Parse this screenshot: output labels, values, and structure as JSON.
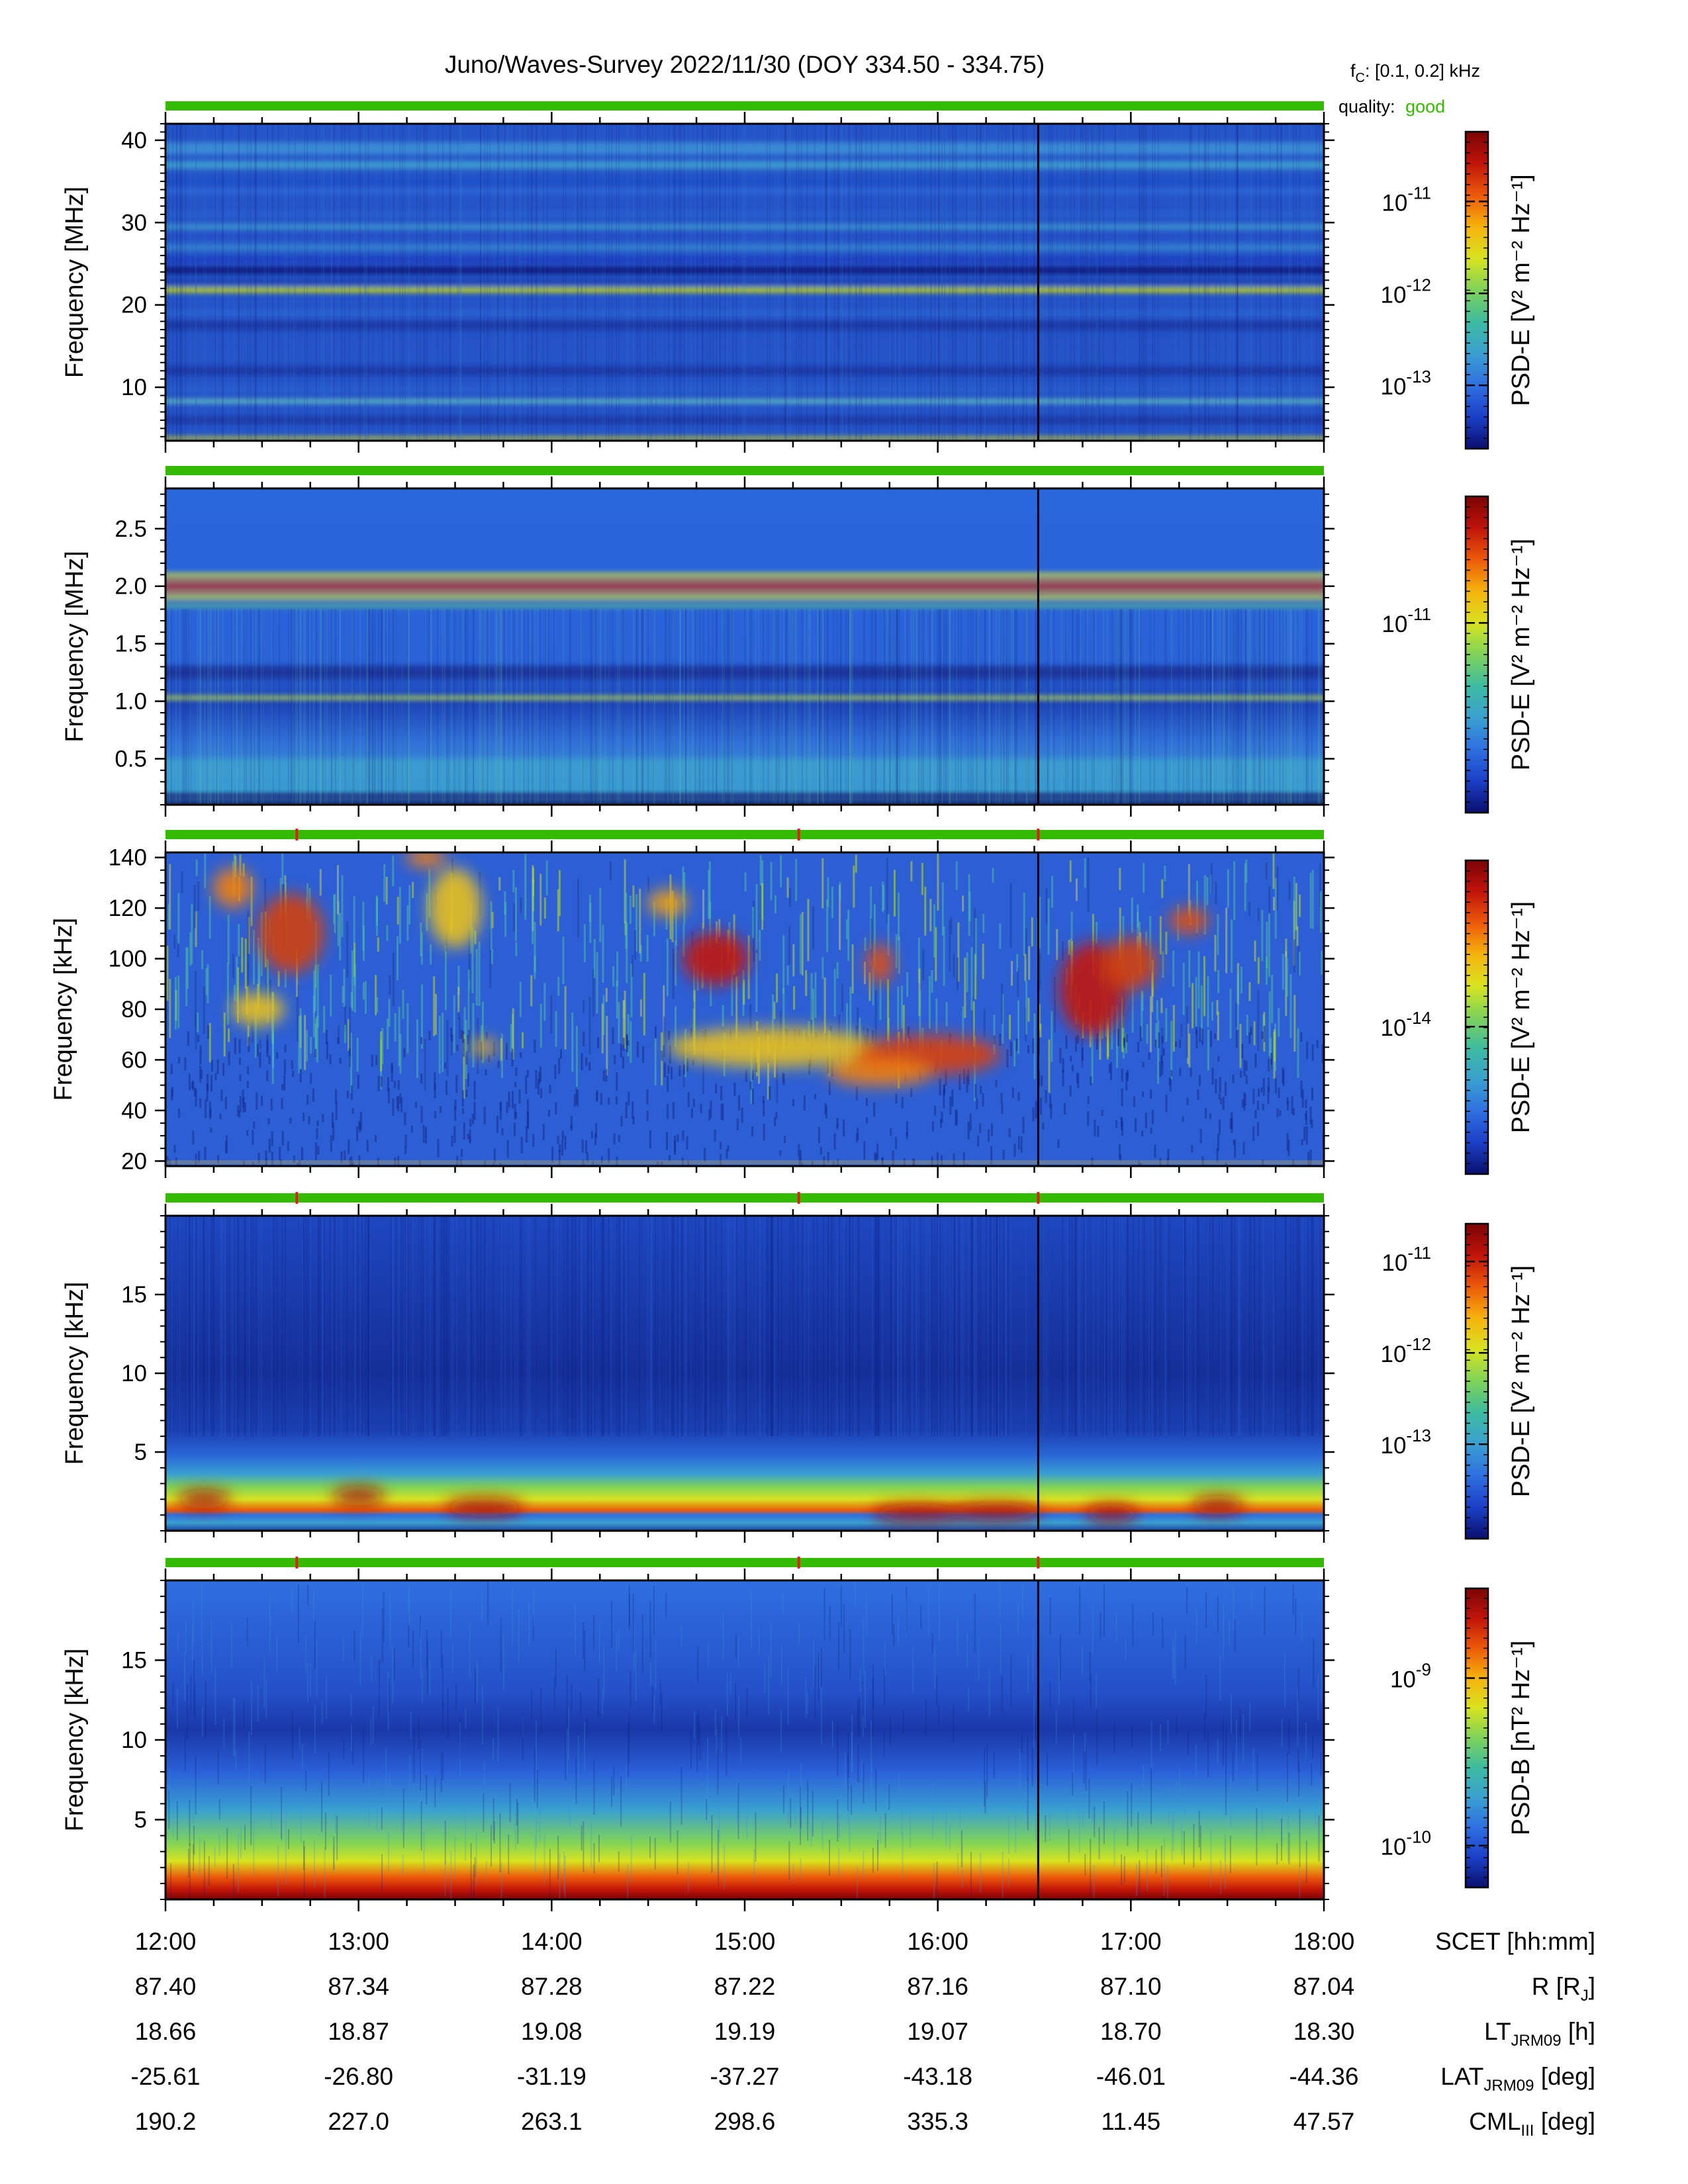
{
  "title": "Juno/Waves-Survey  2022/11/30 (DOY 334.50 - 334.75)",
  "fc": {
    "label": "f",
    "sub": "C",
    "value": ": [0.1, 0.2] kHz"
  },
  "quality": {
    "label": "quality:",
    "value": "good",
    "color": "#33bb00"
  },
  "colors": {
    "quality_bar": "#33bb00",
    "marker": "#e02020"
  },
  "chart_data": [
    {
      "type": "heatmap",
      "ylabel": "Frequency [MHz]",
      "ylim": [
        3.5,
        42
      ],
      "yticks": [
        {
          "v": 10,
          "t": "10"
        },
        {
          "v": 20,
          "t": "20"
        },
        {
          "v": 30,
          "t": "30"
        },
        {
          "v": 40,
          "t": "40"
        }
      ],
      "yminor": 1,
      "cbar": {
        "label": "PSD-E [V² m⁻² Hz⁻¹]",
        "ticks": [
          {
            "f": 0.22,
            "b": "10",
            "e": "-11"
          },
          {
            "f": 0.51,
            "b": "10",
            "e": "-12"
          },
          {
            "f": 0.8,
            "b": "10",
            "e": "-13"
          }
        ]
      },
      "markers": [],
      "bands": [
        {
          "y": 39,
          "w": 1.5,
          "c": "#3a8ad6"
        },
        {
          "y": 37,
          "w": 1,
          "c": "#3d9ad0"
        },
        {
          "y": 35,
          "w": 0.8,
          "c": "#1f50c8"
        },
        {
          "y": 33.8,
          "w": 0.6,
          "c": "#2d68d8"
        },
        {
          "y": 31,
          "w": 0.5,
          "c": "#2a62d0"
        },
        {
          "y": 29.5,
          "w": 0.6,
          "c": "#3d9ad0"
        },
        {
          "y": 28.3,
          "w": 0.4,
          "c": "#2050c8"
        },
        {
          "y": 27,
          "w": 0.8,
          "c": "#3480d0"
        },
        {
          "y": 25.5,
          "w": 0.7,
          "c": "#1a3ec0"
        },
        {
          "y": 24.2,
          "w": 0.9,
          "c": "#101e80"
        },
        {
          "y": 22.8,
          "w": 0.6,
          "c": "#1a3fb0"
        },
        {
          "y": 21.8,
          "w": 0.55,
          "c": "#d6e400"
        },
        {
          "y": 19,
          "w": 0.7,
          "c": "#2a62d0"
        },
        {
          "y": 17.5,
          "w": 1.2,
          "c": "#1a3aa8"
        },
        {
          "y": 15,
          "w": 1,
          "c": "#2852c8"
        },
        {
          "y": 12,
          "w": 1.2,
          "c": "#1a3aa8"
        },
        {
          "y": 9.8,
          "w": 0.5,
          "c": "#2a62d0"
        },
        {
          "y": 8.3,
          "w": 0.45,
          "c": "#6ad0c0"
        },
        {
          "y": 6,
          "w": 1,
          "c": "#1a3aa8"
        },
        {
          "y": 3.8,
          "w": 0.35,
          "c": "#e8e000"
        }
      ]
    },
    {
      "type": "heatmap",
      "ylabel": "Frequency [MHz]",
      "ylim": [
        0.1,
        2.85
      ],
      "yticks": [
        {
          "v": 0.5,
          "t": "0.5"
        },
        {
          "v": 1.0,
          "t": "1.0"
        },
        {
          "v": 1.5,
          "t": "1.5"
        },
        {
          "v": 2.0,
          "t": "2.0"
        },
        {
          "v": 2.5,
          "t": "2.5"
        }
      ],
      "yminor": 0.1,
      "cbar": {
        "label": "PSD-E [V² m⁻² Hz⁻¹]",
        "ticks": [
          {
            "f": 0.4,
            "b": "10",
            "e": "-11"
          }
        ]
      },
      "markers": [],
      "bands": [
        {
          "y": 2.0,
          "w": 0.035,
          "c": "#c81e10"
        },
        {
          "y": 2.05,
          "w": 0.025,
          "c": "#f08010"
        },
        {
          "y": 1.95,
          "w": 0.025,
          "c": "#f08010"
        },
        {
          "y": 2.1,
          "w": 0.03,
          "c": "#d8e030"
        },
        {
          "y": 1.9,
          "w": 0.03,
          "c": "#d8e030"
        },
        {
          "y": 1.83,
          "w": 0.025,
          "c": "#60c878"
        },
        {
          "y": 1.25,
          "w": 0.12,
          "c": "#1a38a0"
        },
        {
          "y": 1.03,
          "w": 0.03,
          "c": "#c0e040"
        },
        {
          "y": 0.4,
          "w": 0.2,
          "c": "#3a9ad0"
        },
        {
          "y": 0.18,
          "w": 0.04,
          "c": "#1a2a80"
        }
      ]
    },
    {
      "type": "heatmap",
      "ylabel": "Frequency [kHz]",
      "ylim": [
        18,
        142
      ],
      "yticks": [
        {
          "v": 20,
          "t": "20"
        },
        {
          "v": 40,
          "t": "40"
        },
        {
          "v": 60,
          "t": "60"
        },
        {
          "v": 80,
          "t": "80"
        },
        {
          "v": 100,
          "t": "100"
        },
        {
          "v": 120,
          "t": "120"
        },
        {
          "v": 140,
          "t": "140"
        }
      ],
      "yminor": 5,
      "cbar": {
        "label": "PSD-E [V² m⁻² Hz⁻¹]",
        "ticks": [
          {
            "f": 0.53,
            "b": "10",
            "e": "-14"
          }
        ]
      },
      "markers": [
        12.68,
        15.28,
        16.52
      ],
      "bands": [
        {
          "y": 19.5,
          "w": 0.8,
          "c": "#e8c020"
        }
      ]
    },
    {
      "type": "heatmap",
      "ylabel": "Frequency [kHz]",
      "ylim": [
        0,
        20
      ],
      "yticks": [
        {
          "v": 5,
          "t": "5"
        },
        {
          "v": 10,
          "t": "10"
        },
        {
          "v": 15,
          "t": "15"
        }
      ],
      "yminor": 1,
      "cbar": {
        "label": "PSD-E [V² m⁻² Hz⁻¹]",
        "ticks": [
          {
            "f": 0.12,
            "b": "10",
            "e": "-11"
          },
          {
            "f": 0.41,
            "b": "10",
            "e": "-12"
          },
          {
            "f": 0.7,
            "b": "10",
            "e": "-13"
          }
        ]
      },
      "markers": [
        12.68,
        15.28,
        16.52
      ],
      "bands": []
    },
    {
      "type": "heatmap",
      "ylabel": "Frequency [kHz]",
      "ylim": [
        0,
        20
      ],
      "yticks": [
        {
          "v": 5,
          "t": "5"
        },
        {
          "v": 10,
          "t": "10"
        },
        {
          "v": 15,
          "t": "15"
        }
      ],
      "yminor": 1,
      "cbar": {
        "label": "PSD-B [nT² Hz⁻¹]",
        "ticks": [
          {
            "f": 0.3,
            "b": "10",
            "e": "-9"
          },
          {
            "f": 0.86,
            "b": "10",
            "e": "-10"
          }
        ]
      },
      "markers": [
        12.68,
        15.28,
        16.52
      ],
      "bands": []
    }
  ],
  "x_axis": {
    "xlim": [
      12,
      18
    ],
    "ticks": [
      12,
      13,
      14,
      15,
      16,
      17,
      18
    ],
    "minor": 0.25,
    "vline": 16.52,
    "rows": [
      {
        "label": "SCET [hh:mm]",
        "values": [
          "12:00",
          "13:00",
          "14:00",
          "15:00",
          "16:00",
          "17:00",
          "18:00"
        ]
      },
      {
        "label": "R [R",
        "label_sub": "J",
        "label_tail": "]",
        "values": [
          "87.40",
          "87.34",
          "87.28",
          "87.22",
          "87.16",
          "87.10",
          "87.04"
        ]
      },
      {
        "label": "LT",
        "label_sub": "JRM09",
        "label_tail": " [h]",
        "values": [
          "18.66",
          "18.87",
          "19.08",
          "19.19",
          "19.07",
          "18.70",
          "18.30"
        ]
      },
      {
        "label": "LAT",
        "label_sub": "JRM09",
        "label_tail": " [deg]",
        "values": [
          "-25.61",
          "-26.80",
          "-31.19",
          "-37.27",
          "-43.18",
          "-46.01",
          "-44.36"
        ]
      },
      {
        "label": "CML",
        "label_sub": "III",
        "label_tail": " [deg]",
        "values": [
          "190.2",
          "227.0",
          "263.1",
          "298.6",
          "335.3",
          "11.45",
          "47.57"
        ]
      }
    ]
  },
  "colormap": [
    "#0a0f6e",
    "#1b3fc6",
    "#2f6fe0",
    "#3aa0d0",
    "#3dbba0",
    "#7fd25a",
    "#d8e320",
    "#f6b30c",
    "#ec5a0a",
    "#c0140a",
    "#7a0404"
  ]
}
